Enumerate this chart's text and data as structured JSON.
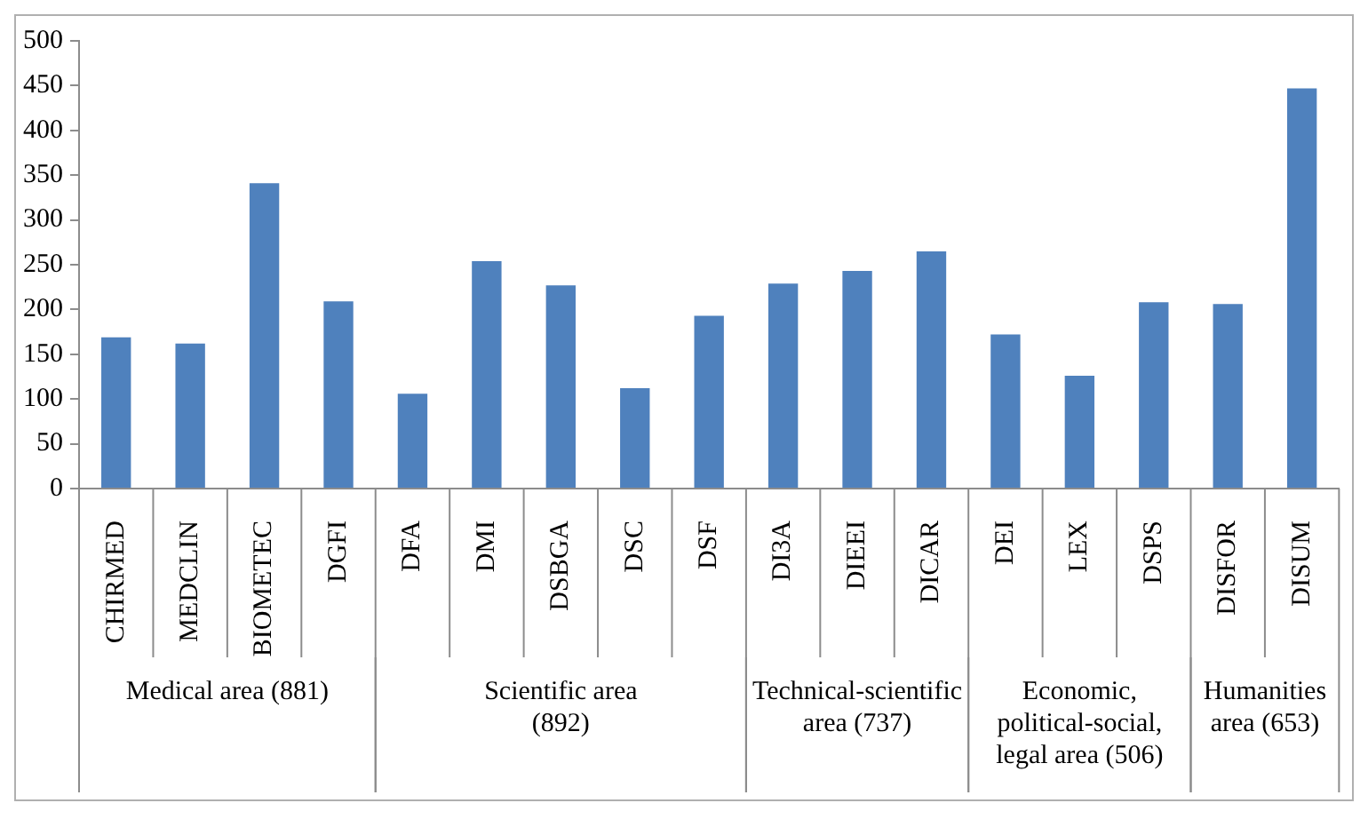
{
  "chart_data": {
    "type": "bar",
    "categories": [
      "CHIRMED",
      "MEDCLIN",
      "BIOMETEC",
      "DGFI",
      "DFA",
      "DMI",
      "DSBGA",
      "DSC",
      "DSF",
      "DI3A",
      "DIEEI",
      "DICAR",
      "DEI",
      "LEX",
      "DSPS",
      "DISFOR",
      "DISUM"
    ],
    "values": [
      169,
      162,
      341,
      209,
      106,
      254,
      227,
      112,
      193,
      229,
      243,
      265,
      172,
      126,
      208,
      206,
      447
    ],
    "color": "#4f81bd",
    "ylim": [
      0,
      500
    ],
    "yticks": [
      0,
      50,
      100,
      150,
      200,
      250,
      300,
      350,
      400,
      450,
      500
    ],
    "grid": false,
    "legend": false,
    "annotations": [
      "Medical area (881)",
      "Scientific area (892)",
      "Technical-scientific area (737)",
      "Economic, political-social, legal area (506)",
      "Humanities area (653)"
    ]
  }
}
